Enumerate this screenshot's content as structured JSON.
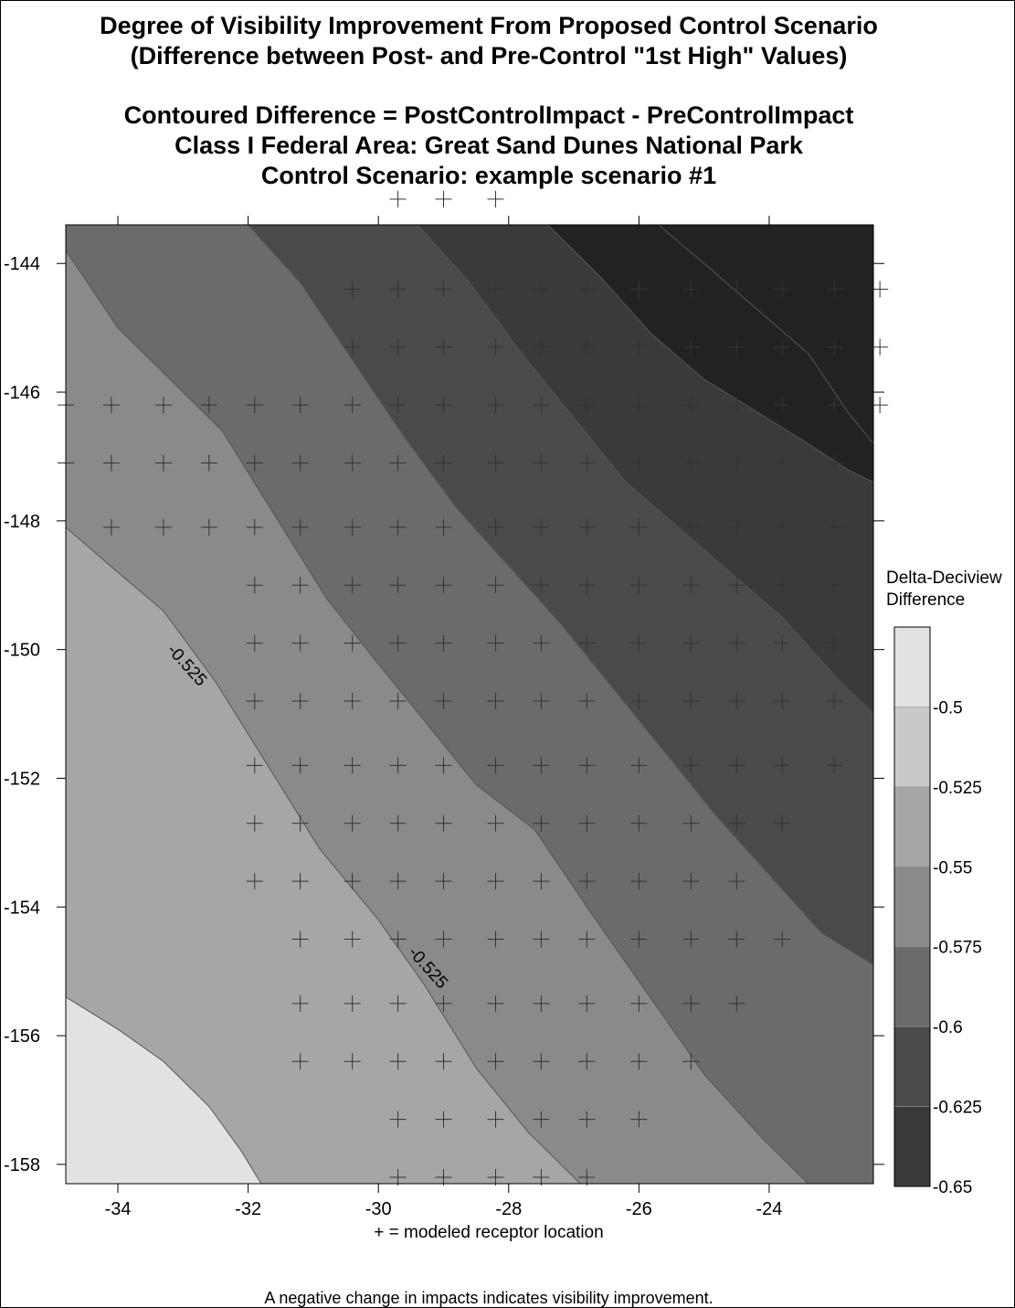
{
  "title": {
    "line1": "Degree of Visibility Improvement From Proposed Control Scenario",
    "line2": "(Difference between Post- and Pre-Control \"1st High\" Values)",
    "line3": "Contoured Difference = PostControlImpact - PreControlImpact",
    "line4": "Class I Federal Area: Great Sand Dunes National Park",
    "line5": "Control Scenario: example scenario #1"
  },
  "notes": {
    "receptor": "+ = modeled receptor location",
    "interpretation": "A negative change in impacts indicates visibility improvement."
  },
  "chart_data": {
    "type": "heatmap",
    "subtype": "filled-contour",
    "xlim": [
      -34.8,
      -22.4
    ],
    "ylim": [
      -158.3,
      -143.4
    ],
    "x_ticks": [
      -34,
      -32,
      -30,
      -28,
      -26,
      -24
    ],
    "y_ticks": [
      -144,
      -146,
      -148,
      -150,
      -152,
      -154,
      -156,
      -158
    ],
    "colorbar": {
      "title_line1": "Delta-Deciview",
      "title_line2": "Difference",
      "levels": [
        -0.475,
        -0.5,
        -0.525,
        -0.55,
        -0.575,
        -0.6,
        -0.625,
        -0.65
      ],
      "tick_labels": [
        "-0.5",
        "-0.525",
        "-0.55",
        "-0.575",
        "-0.6",
        "-0.625",
        "-0.65"
      ],
      "band_colors": [
        "#e2e2e2",
        "#c9c9c9",
        "#a6a6a6",
        "#8a8a8a",
        "#6b6b6b",
        "#4a4a4a",
        "#3a3a3a",
        "#222222"
      ]
    },
    "contour_labels": [
      {
        "text": "-0.525",
        "x": -33.0,
        "y": -150.3
      },
      {
        "text": "-0.525",
        "x": -29.3,
        "y": -155.0
      }
    ],
    "field": {
      "description": "value decreases toward the upper-right",
      "bands": [
        {
          "upper": -0.475,
          "lower": -0.5
        },
        {
          "upper": -0.5,
          "lower": -0.525
        },
        {
          "upper": -0.525,
          "lower": -0.55
        },
        {
          "upper": -0.55,
          "lower": -0.575
        },
        {
          "upper": -0.575,
          "lower": -0.6
        },
        {
          "upper": -0.6,
          "lower": -0.625
        },
        {
          "upper": -0.625,
          "lower": -0.65
        }
      ],
      "contours": [
        {
          "level": -0.5,
          "points": [
            [
              -34.8,
              -155.4
            ],
            [
              -34.0,
              -155.9
            ],
            [
              -33.3,
              -156.4
            ],
            [
              -32.6,
              -157.1
            ],
            [
              -32.1,
              -157.8
            ],
            [
              -31.8,
              -158.3
            ]
          ]
        },
        {
          "level": -0.525,
          "points": [
            [
              -34.8,
              -148.1
            ],
            [
              -34.0,
              -148.8
            ],
            [
              -33.3,
              -149.4
            ],
            [
              -32.5,
              -150.5
            ],
            [
              -31.7,
              -151.8
            ],
            [
              -30.9,
              -153.1
            ],
            [
              -30.0,
              -154.2
            ],
            [
              -29.3,
              -155.2
            ],
            [
              -28.5,
              -156.5
            ],
            [
              -27.7,
              -157.5
            ],
            [
              -26.9,
              -158.3
            ]
          ]
        },
        {
          "level": -0.55,
          "points": [
            [
              -34.8,
              -143.8
            ],
            [
              -34.0,
              -145.0
            ],
            [
              -33.2,
              -145.8
            ],
            [
              -32.4,
              -146.6
            ],
            [
              -31.6,
              -147.9
            ],
            [
              -30.8,
              -149.2
            ],
            [
              -30.1,
              -150.1
            ],
            [
              -29.3,
              -151.1
            ],
            [
              -28.5,
              -152.1
            ],
            [
              -27.6,
              -152.8
            ],
            [
              -26.8,
              -154.0
            ],
            [
              -25.9,
              -155.3
            ],
            [
              -25.0,
              -156.6
            ],
            [
              -24.1,
              -157.6
            ],
            [
              -23.4,
              -158.3
            ]
          ]
        },
        {
          "level": -0.575,
          "points": [
            [
              -32.0,
              -143.4
            ],
            [
              -31.2,
              -144.3
            ],
            [
              -30.4,
              -145.5
            ],
            [
              -29.6,
              -146.7
            ],
            [
              -28.8,
              -147.8
            ],
            [
              -28.0,
              -148.7
            ],
            [
              -27.2,
              -149.6
            ],
            [
              -26.4,
              -150.6
            ],
            [
              -25.6,
              -151.6
            ],
            [
              -24.8,
              -152.6
            ],
            [
              -24.0,
              -153.5
            ],
            [
              -23.2,
              -154.4
            ],
            [
              -22.4,
              -154.9
            ]
          ]
        },
        {
          "level": -0.6,
          "points": [
            [
              -29.4,
              -143.4
            ],
            [
              -28.6,
              -144.3
            ],
            [
              -27.8,
              -145.4
            ],
            [
              -27.0,
              -146.4
            ],
            [
              -26.2,
              -147.4
            ],
            [
              -25.4,
              -148.1
            ],
            [
              -24.6,
              -148.8
            ],
            [
              -23.8,
              -149.5
            ],
            [
              -23.0,
              -150.4
            ],
            [
              -22.4,
              -151.0
            ]
          ]
        },
        {
          "level": -0.625,
          "points": [
            [
              -27.4,
              -143.4
            ],
            [
              -26.6,
              -144.2
            ],
            [
              -25.8,
              -145.1
            ],
            [
              -25.0,
              -145.8
            ],
            [
              -24.2,
              -146.3
            ],
            [
              -23.4,
              -146.8
            ],
            [
              -22.8,
              -147.2
            ],
            [
              -22.4,
              -147.4
            ]
          ]
        },
        {
          "level": -0.65,
          "points": [
            [
              -25.7,
              -143.4
            ],
            [
              -25.0,
              -144.0
            ],
            [
              -24.2,
              -144.7
            ],
            [
              -23.4,
              -145.4
            ],
            [
              -22.8,
              -146.3
            ],
            [
              -22.4,
              -146.8
            ]
          ]
        }
      ]
    },
    "receptors": [
      {
        "y": -143.0,
        "x": [
          -29.7,
          -29.0,
          -28.2
        ]
      },
      {
        "y": -144.4,
        "x": [
          -30.4,
          -29.7,
          -29.0,
          -28.2,
          -27.5,
          -26.8,
          -26.0,
          -25.2,
          -24.5,
          -23.8,
          -23.0,
          -22.3
        ]
      },
      {
        "y": -145.3,
        "x": [
          -30.4,
          -29.7,
          -29.0,
          -28.2,
          -27.5,
          -26.8,
          -26.0,
          -25.2,
          -24.5,
          -23.8,
          -23.0,
          -22.3
        ]
      },
      {
        "y": -146.2,
        "x": [
          -34.8,
          -34.1,
          -33.3,
          -32.6,
          -31.9,
          -31.2,
          -30.4,
          -29.7,
          -29.0,
          -28.2,
          -27.5,
          -26.8,
          -26.0,
          -25.2,
          -24.5,
          -23.8,
          -23.0,
          -22.3
        ]
      },
      {
        "y": -147.1,
        "x": [
          -34.8,
          -34.1,
          -33.3,
          -32.6,
          -31.9,
          -31.2,
          -30.4,
          -29.7,
          -29.0,
          -28.2,
          -27.5,
          -26.8,
          -26.0,
          -25.2,
          -24.5,
          -23.8,
          -23.0
        ]
      },
      {
        "y": -148.1,
        "x": [
          -34.1,
          -33.3,
          -32.6,
          -31.9,
          -31.2,
          -30.4,
          -29.7,
          -29.0,
          -28.2,
          -27.5,
          -26.8,
          -26.0,
          -25.2,
          -24.5,
          -23.8,
          -23.0
        ]
      },
      {
        "y": -149.0,
        "x": [
          -31.9,
          -31.2,
          -30.4,
          -29.7,
          -29.0,
          -28.2,
          -27.5,
          -26.8,
          -26.0,
          -25.2,
          -24.5,
          -23.8,
          -23.0
        ]
      },
      {
        "y": -149.9,
        "x": [
          -31.9,
          -31.2,
          -30.4,
          -29.7,
          -29.0,
          -28.2,
          -27.5,
          -26.8,
          -26.0,
          -25.2,
          -24.5,
          -23.8,
          -23.0
        ]
      },
      {
        "y": -150.8,
        "x": [
          -31.9,
          -31.2,
          -30.4,
          -29.7,
          -29.0,
          -28.2,
          -27.5,
          -26.8,
          -26.0,
          -25.2,
          -24.5,
          -23.8,
          -23.0
        ]
      },
      {
        "y": -151.8,
        "x": [
          -31.9,
          -31.2,
          -30.4,
          -29.7,
          -29.0,
          -28.2,
          -27.5,
          -26.8,
          -26.0,
          -25.2,
          -24.5,
          -23.8,
          -23.0
        ]
      },
      {
        "y": -152.7,
        "x": [
          -31.9,
          -31.2,
          -30.4,
          -29.7,
          -29.0,
          -28.2,
          -27.5,
          -26.8,
          -26.0,
          -25.2,
          -24.5,
          -23.8
        ]
      },
      {
        "y": -153.6,
        "x": [
          -31.9,
          -31.2,
          -30.4,
          -29.7,
          -29.0,
          -28.2,
          -27.5,
          -26.8,
          -26.0,
          -25.2,
          -24.5
        ]
      },
      {
        "y": -154.5,
        "x": [
          -31.2,
          -30.4,
          -29.7,
          -29.0,
          -28.2,
          -27.5,
          -26.8,
          -26.0,
          -25.2,
          -24.5,
          -23.8
        ]
      },
      {
        "y": -155.5,
        "x": [
          -31.2,
          -30.4,
          -29.7,
          -29.0,
          -28.2,
          -27.5,
          -26.8,
          -26.0,
          -25.2,
          -24.5
        ]
      },
      {
        "y": -156.4,
        "x": [
          -31.2,
          -30.4,
          -29.7,
          -29.0,
          -28.2,
          -27.5,
          -26.8,
          -26.0,
          -25.2
        ]
      },
      {
        "y": -157.3,
        "x": [
          -29.7,
          -29.0,
          -28.2,
          -27.5,
          -26.8,
          -26.0
        ]
      },
      {
        "y": -158.2,
        "x": [
          -29.7,
          -29.0,
          -28.2,
          -27.5,
          -26.8
        ]
      }
    ]
  }
}
